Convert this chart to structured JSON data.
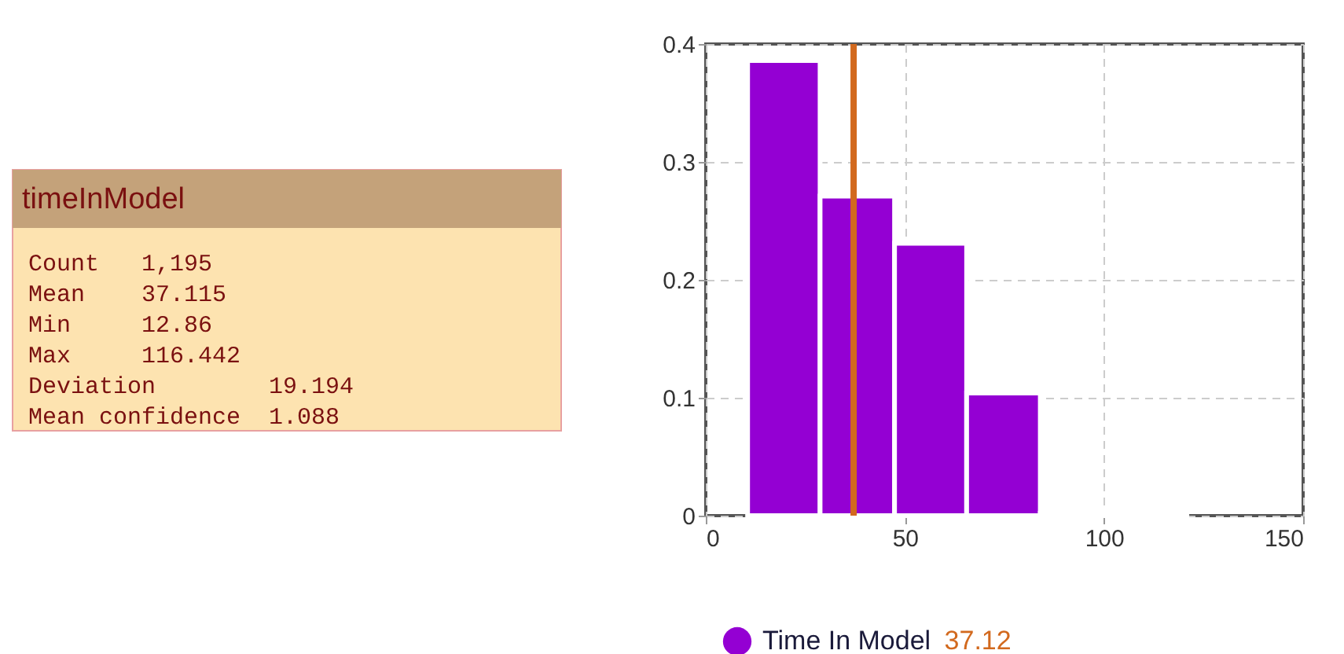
{
  "chart_data": [
    {
      "type": "other",
      "title": "timeInModel",
      "annotations": [
        "Count 1,195",
        "Mean 37.115",
        "Min 12.86",
        "Max 116.442",
        "Deviation 19.194",
        "Mean confidence 1.088"
      ]
    },
    {
      "type": "histogram",
      "bins": [
        10.5,
        28.7,
        47.4,
        65.5,
        84,
        102.4,
        120.8
      ],
      "series": [
        {
          "name": "Time In Model",
          "color": "#9400d3",
          "values": [
            0.386,
            0.271,
            0.231,
            0.104,
            0.002,
            0.004
          ]
        }
      ],
      "xlim": [
        0,
        150
      ],
      "xticks": [
        0,
        50,
        100,
        150
      ],
      "ylim": [
        0,
        0.4
      ],
      "yticks": [
        0,
        0.1,
        0.2,
        0.3,
        0.4
      ],
      "grid": true,
      "legend": "bottom",
      "ref_lines": [
        {
          "axis": "x",
          "value": 37.12,
          "label": "37.12",
          "color": "#d2691e"
        }
      ]
    }
  ]
}
